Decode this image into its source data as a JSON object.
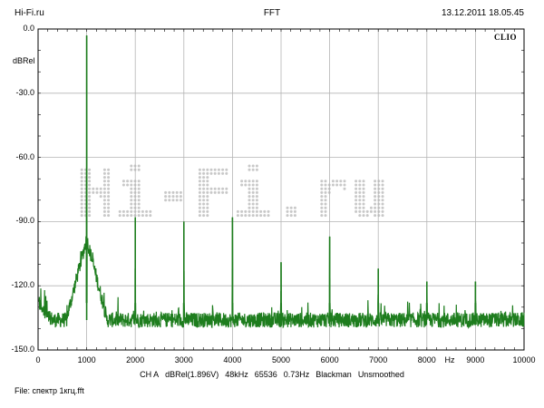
{
  "header": {
    "left": "Hi-Fi.ru",
    "center": "FFT",
    "right": "13.12.2011 18.05.45"
  },
  "brand": "CLIO",
  "watermark": "Hi-Fi.ru",
  "settings": {
    "channel": "CH A",
    "reference": "dBRel(1.896V)",
    "sample_rate": "48kHz",
    "fft_size": "65536",
    "resolution": "0.73Hz",
    "window": "Blackman",
    "smoothing": "Unsmoothed"
  },
  "file": "File: спектр 1кгц.fft",
  "colors": {
    "trace": "#1e7d1e",
    "grid": "#b4b4b4",
    "watermark": "#c8c8c8"
  },
  "chart_data": {
    "type": "line",
    "title": "FFT",
    "ylabel": "dBRel",
    "xlabel": "Hz",
    "xlim": [
      0,
      10000
    ],
    "ylim": [
      -150,
      0
    ],
    "x_ticks": [
      0,
      1000,
      2000,
      3000,
      4000,
      5000,
      6000,
      7000,
      8000,
      9000,
      10000
    ],
    "y_ticks": [
      0,
      -30,
      -60,
      -90,
      -120,
      -150
    ],
    "y_tick_labels": [
      "0.0",
      "-30.0",
      "-60.0",
      "-90.0",
      "-120.0",
      "-150.0"
    ],
    "grid": true,
    "noise_floor": -136,
    "series": [
      {
        "peaks": [
          {
            "x": 1000,
            "y": -3
          },
          {
            "x": 2000,
            "y": -88
          },
          {
            "x": 3000,
            "y": -90
          },
          {
            "x": 4000,
            "y": -88
          },
          {
            "x": 5000,
            "y": -109
          },
          {
            "x": 6000,
            "y": -97
          },
          {
            "x": 7000,
            "y": -112
          },
          {
            "x": 8000,
            "y": -118
          },
          {
            "x": 9000,
            "y": -118
          }
        ]
      }
    ]
  }
}
